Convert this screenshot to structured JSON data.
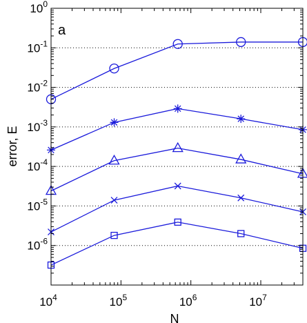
{
  "chart_data": {
    "type": "line",
    "panel_label": "a",
    "xlabel": "N",
    "ylabel": "error, E",
    "x_scale": "log",
    "y_scale": "log",
    "xlim": [
      10000,
      40000000
    ],
    "ylim": [
      1e-07,
      1
    ],
    "x_ticks": [
      {
        "value": 10000,
        "base": "10",
        "exp": "4"
      },
      {
        "value": 100000,
        "base": "10",
        "exp": "5"
      },
      {
        "value": 1000000,
        "base": "10",
        "exp": "6"
      },
      {
        "value": 10000000,
        "base": "10",
        "exp": "7"
      }
    ],
    "y_ticks": [
      {
        "value": 1,
        "base": "10",
        "exp": "0"
      },
      {
        "value": 0.1,
        "base": "10",
        "exp": "-1"
      },
      {
        "value": 0.01,
        "base": "10",
        "exp": "-2"
      },
      {
        "value": 0.001,
        "base": "10",
        "exp": "-3"
      },
      {
        "value": 0.0001,
        "base": "10",
        "exp": "-4"
      },
      {
        "value": 1e-05,
        "base": "10",
        "exp": "-5"
      },
      {
        "value": 1e-06,
        "base": "10",
        "exp": "-6"
      }
    ],
    "grid": "horizontal dotted at y decades",
    "line_color": "#1a1adb",
    "x": [
      10000,
      80000,
      650000,
      5200000,
      40000000
    ],
    "series": [
      {
        "marker": "circle",
        "values": [
          0.005,
          0.03,
          0.125,
          0.14,
          0.14
        ]
      },
      {
        "marker": "asterisk",
        "values": [
          0.00026,
          0.0013,
          0.0029,
          0.0016,
          0.00085
        ]
      },
      {
        "marker": "triangle",
        "values": [
          2.4e-05,
          0.00014,
          0.00029,
          0.00015,
          6.5e-05
        ]
      },
      {
        "marker": "cross",
        "values": [
          2.2e-06,
          1.4e-05,
          3.2e-05,
          1.6e-05,
          7.1e-06
        ]
      },
      {
        "marker": "square",
        "values": [
          3.2e-07,
          1.8e-06,
          3.9e-06,
          2e-06,
          8.5e-07
        ]
      }
    ]
  }
}
